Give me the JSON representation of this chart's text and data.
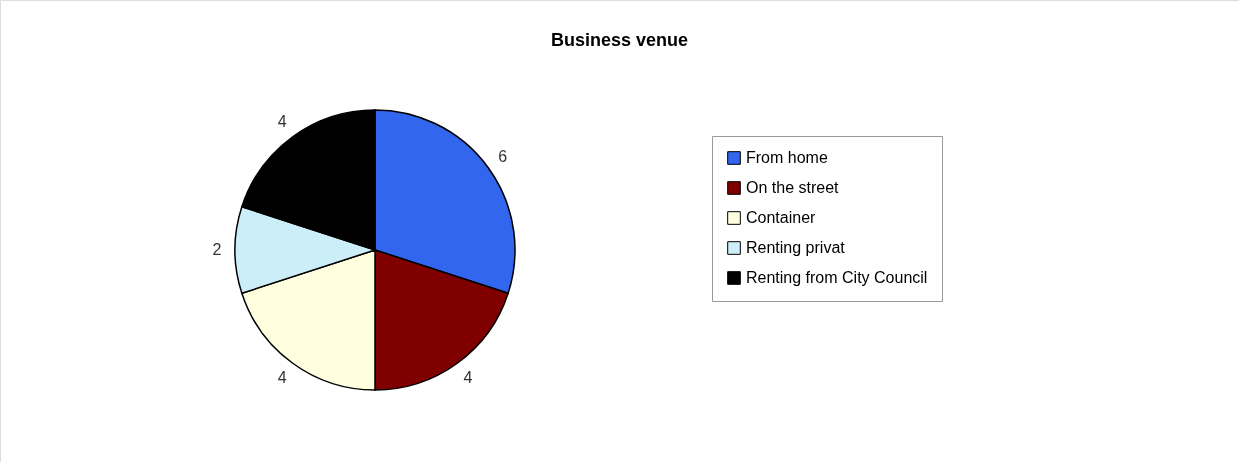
{
  "chart_data": {
    "type": "pie",
    "title": "Business venue",
    "categories": [
      "From home",
      "On the street",
      "Container",
      "Renting privat",
      "Renting from City Council"
    ],
    "values": [
      6,
      4,
      4,
      2,
      4
    ],
    "colors": [
      "#3366ee",
      "#800000",
      "#ffffe0",
      "#cceef8",
      "#000000"
    ],
    "data_labels": true,
    "legend": "right"
  }
}
